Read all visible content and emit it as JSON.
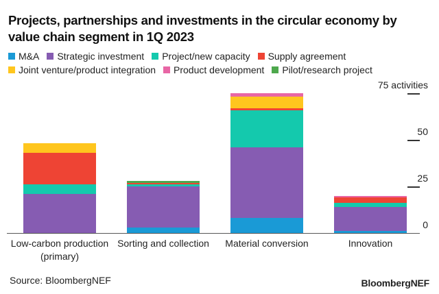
{
  "title": "Projects, partnerships and investments in the circular economy by value chain segment in 1Q 2023",
  "legend": {
    "rows": [
      [
        {
          "label": "M&A",
          "color": "#1a9ad6"
        },
        {
          "label": "Strategic investment",
          "color": "#865cb2"
        },
        {
          "label": "Project/new capacity",
          "color": "#14c9ad"
        },
        {
          "label": "Supply agreement",
          "color": "#ee4434"
        }
      ],
      [
        {
          "label": "Joint venture/product integration",
          "color": "#ffc61e"
        },
        {
          "label": "Product development",
          "color": "#e866a5"
        },
        {
          "label": "Pilot/research project",
          "color": "#4ea84d"
        }
      ]
    ]
  },
  "axis": {
    "ticks": [
      {
        "value": 75,
        "label": "75 activities"
      },
      {
        "value": 50,
        "label": "50"
      },
      {
        "value": 25,
        "label": "25"
      },
      {
        "value": 0,
        "label": "0"
      }
    ]
  },
  "categories": [
    {
      "label_line1": "Low-carbon production",
      "label_line2": "(primary)"
    },
    {
      "label_line1": "Sorting and collection",
      "label_line2": ""
    },
    {
      "label_line1": "Material conversion",
      "label_line2": ""
    },
    {
      "label_line1": "Innovation",
      "label_line2": ""
    }
  ],
  "footer": {
    "source": "Source: BloombergNEF",
    "brand": "BloombergNEF"
  },
  "chart_data": {
    "type": "bar",
    "stacked": true,
    "title": "Projects, partnerships and investments in the circular economy by value chain segment in 1Q 2023",
    "xlabel": "",
    "ylabel": "activities",
    "ylim": [
      0,
      75
    ],
    "yticks": [
      0,
      25,
      50,
      75
    ],
    "grid": false,
    "legend_position": "top",
    "categories": [
      "Low-carbon production (primary)",
      "Sorting and collection",
      "Material conversion",
      "Innovation"
    ],
    "series": [
      {
        "name": "M&A",
        "color": "#1a9ad6",
        "values": [
          0,
          3,
          8,
          1
        ]
      },
      {
        "name": "Strategic investment",
        "color": "#865cb2",
        "values": [
          21,
          22,
          38,
          13
        ]
      },
      {
        "name": "Project/new capacity",
        "color": "#14c9ad",
        "values": [
          5,
          1,
          20,
          2
        ]
      },
      {
        "name": "Supply agreement",
        "color": "#ee4434",
        "values": [
          17,
          1,
          1,
          3
        ]
      },
      {
        "name": "Joint venture/product integration",
        "color": "#ffc61e",
        "values": [
          5,
          0,
          6,
          0
        ]
      },
      {
        "name": "Product development",
        "color": "#e866a5",
        "values": [
          0,
          0,
          2,
          1
        ]
      },
      {
        "name": "Pilot/research project",
        "color": "#4ea84d",
        "values": [
          0,
          1,
          0,
          0
        ]
      }
    ],
    "totals": [
      48,
      28,
      75,
      20
    ],
    "source": "Source: BloombergNEF"
  }
}
